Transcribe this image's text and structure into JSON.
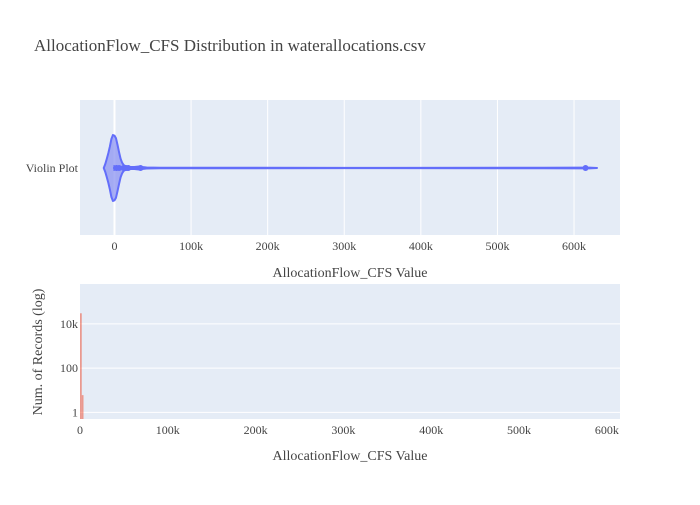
{
  "chart_data": [
    {
      "type": "violin",
      "title": "AllocationFlow_CFS Distribution in waterallocations.csv",
      "category_label": "Violin Plot",
      "xlabel": "AllocationFlow_CFS Value",
      "xlim": [
        -45000,
        660000
      ],
      "xticks": [
        0,
        100000,
        200000,
        300000,
        400000,
        500000,
        600000
      ],
      "xtick_labels": [
        "0",
        "100k",
        "200k",
        "300k",
        "400k",
        "500k",
        "600k"
      ],
      "box": {
        "q1": 0,
        "median": 1000,
        "q3": 2500,
        "upper_fence": 630000
      },
      "density": [
        {
          "x": -14000,
          "w": 0.0
        },
        {
          "x": -12000,
          "w": 0.12
        },
        {
          "x": -10000,
          "w": 0.28
        },
        {
          "x": -8000,
          "w": 0.45
        },
        {
          "x": -6000,
          "w": 0.65
        },
        {
          "x": -4000,
          "w": 0.88
        },
        {
          "x": -2000,
          "w": 1.0
        },
        {
          "x": 0,
          "w": 0.98
        },
        {
          "x": 2000,
          "w": 0.9
        },
        {
          "x": 4000,
          "w": 0.7
        },
        {
          "x": 6000,
          "w": 0.48
        },
        {
          "x": 8000,
          "w": 0.28
        },
        {
          "x": 10000,
          "w": 0.16
        },
        {
          "x": 12000,
          "w": 0.09
        },
        {
          "x": 14000,
          "w": 0.06
        },
        {
          "x": 16000,
          "w": 0.045
        },
        {
          "x": 20000,
          "w": 0.03
        },
        {
          "x": 26000,
          "w": 0.03
        },
        {
          "x": 32000,
          "w": 0.045
        },
        {
          "x": 36000,
          "w": 0.03
        },
        {
          "x": 42000,
          "w": 0.015
        },
        {
          "x": 60000,
          "w": 0.008
        },
        {
          "x": 300000,
          "w": 0.004
        },
        {
          "x": 560000,
          "w": 0.008
        },
        {
          "x": 610000,
          "w": 0.012
        },
        {
          "x": 620000,
          "w": 0.012
        },
        {
          "x": 630000,
          "w": 0.0
        }
      ],
      "points": [
        2000,
        6000,
        12000,
        15000,
        18000,
        34000,
        615000
      ],
      "colors": {
        "fill": "#8C94F2",
        "line": "#636EFA",
        "plot_bg": "#E5ECF6"
      }
    },
    {
      "type": "histogram",
      "xlabel": "AllocationFlow_CFS Value",
      "ylabel": "Num. of Records (log)",
      "y_scale": "log",
      "xlim": [
        0,
        615000
      ],
      "xticks": [
        0,
        100000,
        200000,
        300000,
        400000,
        500000,
        600000
      ],
      "xtick_labels": [
        "0",
        "100k",
        "200k",
        "300k",
        "400k",
        "500k",
        "600k"
      ],
      "ylim_log10": [
        -0.3,
        5.8
      ],
      "yticks": [
        1,
        100,
        10000
      ],
      "ytick_labels": [
        "1",
        "100",
        "10k"
      ],
      "bins": [
        {
          "x0": 0,
          "x1": 2000,
          "count": 30000
        },
        {
          "x0": 2000,
          "x1": 4000,
          "count": 6
        }
      ],
      "colors": {
        "bar": "#EF553B",
        "plot_bg": "#E5ECF6"
      }
    }
  ]
}
